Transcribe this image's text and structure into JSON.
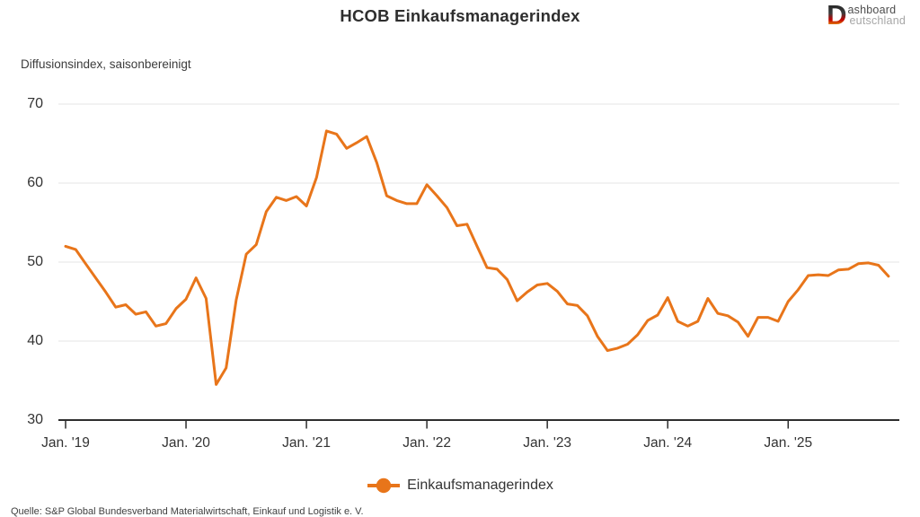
{
  "title": "HCOB Einkaufsmanagerindex",
  "subtitle": "Diffusionsindex, saisonbereinigt",
  "logo": {
    "initial": "D",
    "line1": "ashboard",
    "line2": "eutschland"
  },
  "legend": {
    "label": "Einkaufsmanagerindex"
  },
  "source": "Quelle: S&P Global Bundesverband Materialwirtschaft, Einkauf und Logistik e. V.",
  "colors": {
    "line": "#E8751A",
    "axis": "#2e2e2e",
    "grid": "#ebebeb",
    "text": "#333333"
  },
  "chart_data": {
    "type": "line",
    "title": "HCOB Einkaufsmanagerindex",
    "ylabel": "Diffusionsindex, saisonbereinigt",
    "series_name": "Einkaufsmanagerindex",
    "frequency": "monthly",
    "x_start": "2019-01",
    "x_end": "2025-11",
    "values": [
      52.0,
      51.6,
      49.8,
      48.0,
      46.2,
      44.3,
      44.6,
      43.4,
      43.7,
      41.9,
      42.2,
      44.1,
      45.3,
      48.0,
      45.4,
      34.5,
      36.6,
      45.2,
      51.0,
      52.2,
      56.4,
      58.2,
      57.8,
      58.3,
      57.1,
      60.7,
      66.6,
      66.2,
      64.4,
      65.1,
      65.9,
      62.6,
      58.4,
      57.8,
      57.4,
      57.4,
      59.8,
      58.4,
      56.9,
      54.6,
      54.8,
      52.0,
      49.3,
      49.1,
      47.8,
      45.1,
      46.2,
      47.1,
      47.3,
      46.3,
      44.7,
      44.5,
      43.2,
      40.6,
      38.8,
      39.1,
      39.6,
      40.8,
      42.6,
      43.3,
      45.5,
      42.5,
      41.9,
      42.5,
      45.4,
      43.5,
      43.2,
      42.4,
      40.6,
      43.0,
      43.0,
      42.5,
      45.0,
      46.5,
      48.3,
      48.4,
      48.3,
      49.0,
      49.1,
      49.8,
      49.9,
      49.6,
      48.2
    ],
    "ylim": [
      30,
      70
    ],
    "y_ticks": [
      70,
      60,
      50,
      40,
      30
    ],
    "x_tick_labels": [
      "Jan. '19",
      "Jan. '20",
      "Jan. '21",
      "Jan. '22",
      "Jan. '23",
      "Jan. '24",
      "Jan. '25"
    ],
    "x_tick_month_indices": [
      0,
      12,
      24,
      36,
      48,
      60,
      72
    ],
    "grid": true,
    "legend_position": "bottom"
  }
}
